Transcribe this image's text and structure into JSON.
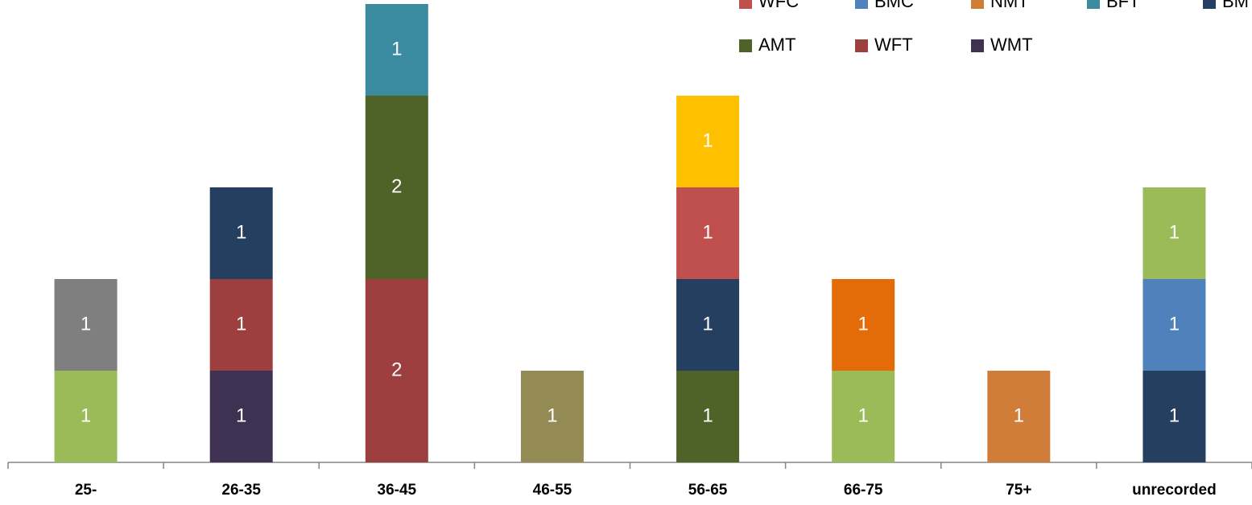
{
  "chart_data": {
    "type": "bar",
    "stacked": true,
    "legend": "top-right",
    "categories": [
      "25-",
      "26-35",
      "36-45",
      "46-55",
      "56-65",
      "66-75",
      "75+",
      "unrecorded"
    ],
    "series": [
      {
        "name": "WMT",
        "color": "#3f3151",
        "values": [
          null,
          1,
          null,
          null,
          null,
          null,
          null,
          null
        ]
      },
      {
        "name": "WFT",
        "color": "#9e3f3f",
        "values": [
          null,
          1,
          2,
          null,
          null,
          null,
          null,
          null
        ]
      },
      {
        "name": "AMT",
        "color": "#4f6228",
        "values": [
          null,
          null,
          2,
          null,
          1,
          null,
          null,
          null
        ]
      },
      {
        "name": "BFT",
        "color": "#3a8aa0",
        "values": [
          null,
          null,
          1,
          null,
          null,
          null,
          null,
          null
        ]
      },
      {
        "name": "BMT",
        "color": "#243f60",
        "values": [
          null,
          1,
          null,
          null,
          1,
          null,
          null,
          1
        ]
      },
      {
        "name": "WFC",
        "color": "#c0504d",
        "values": [
          null,
          null,
          null,
          null,
          1,
          null,
          null,
          null
        ]
      },
      {
        "color": "#ffc000",
        "values": [
          null,
          null,
          null,
          null,
          1,
          null,
          null,
          null
        ]
      },
      {
        "name": "NMT",
        "color": "#d07d3a",
        "values": [
          null,
          null,
          null,
          null,
          null,
          null,
          1,
          null
        ]
      },
      {
        "name": "BMC",
        "color": "#4f81bd",
        "values": [
          null,
          null,
          null,
          null,
          null,
          null,
          null,
          1
        ]
      },
      {
        "color": "#948a54",
        "values": [
          null,
          null,
          null,
          1,
          null,
          null,
          null,
          null
        ]
      },
      {
        "color": "#9bbb59",
        "values": [
          1,
          null,
          null,
          null,
          null,
          1,
          null,
          1
        ]
      },
      {
        "color": "#7f7f7f",
        "values": [
          1,
          null,
          null,
          null,
          null,
          null,
          null,
          null
        ]
      },
      {
        "color": "#e36c09",
        "values": [
          null,
          null,
          null,
          null,
          null,
          1,
          null,
          null
        ]
      }
    ]
  }
}
